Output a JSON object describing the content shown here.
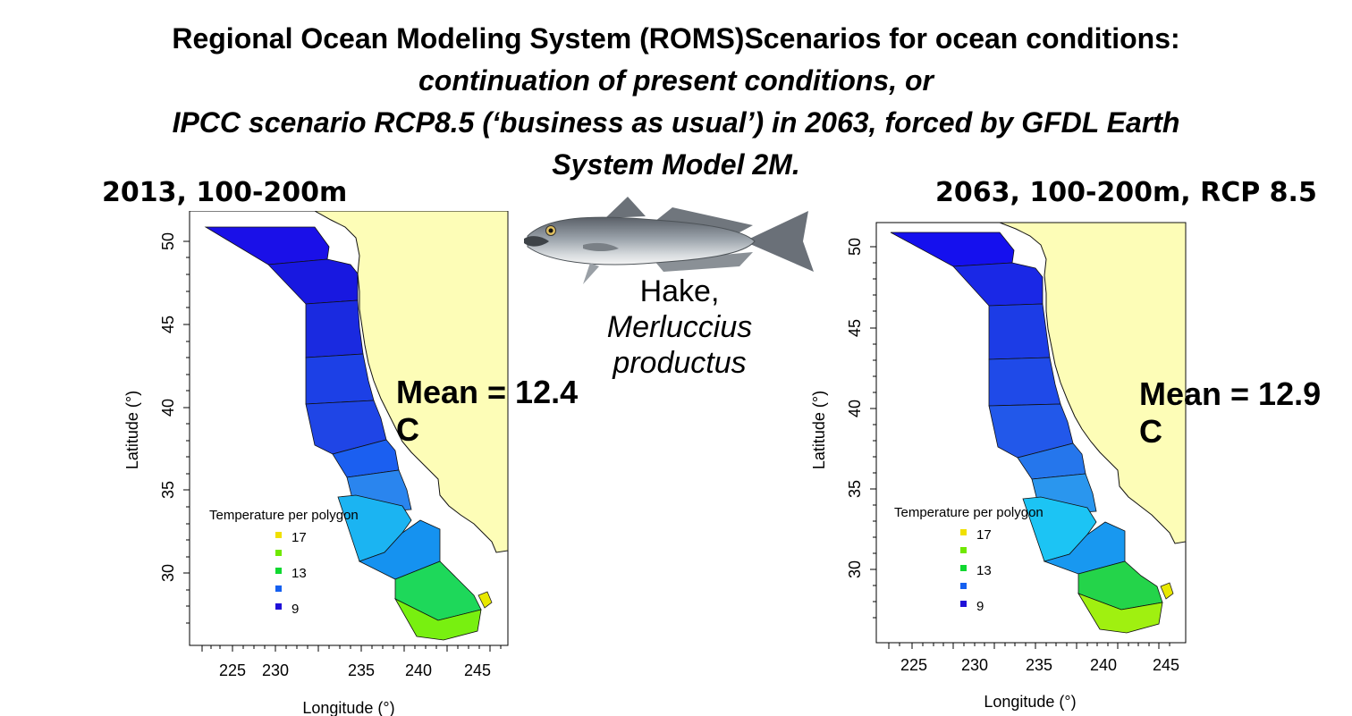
{
  "title": {
    "line1": "Regional Ocean Modeling System (ROMS)Scenarios for ocean conditions:",
    "line2": "continuation of present conditions, or",
    "line3": "IPCC scenario RCP8.5 (‘business as usual’) in 2063, forced by GFDL Earth",
    "line4": "System Model 2M."
  },
  "fish": {
    "common_name": "Hake,",
    "sci_line1": "Merluccius",
    "sci_line2": "productus",
    "icon": "hake-fish-illustration"
  },
  "panels": [
    {
      "heading": "2013, 100-200m",
      "mean_line1": "Mean = 12.4",
      "mean_line2": "C",
      "x_ticks": [
        "225",
        "230",
        "235",
        "240",
        "245"
      ],
      "y_ticks": [
        "50",
        "45",
        "40",
        "35",
        "30"
      ],
      "x_label": "Longitude (°)",
      "y_label": "Latitude (°)",
      "legend_title": "Temperature per polygon",
      "legend": [
        {
          "label": "17",
          "color": "#f0e000"
        },
        {
          "label": "",
          "color": "#70e800"
        },
        {
          "label": "13",
          "color": "#10d830"
        },
        {
          "label": "",
          "color": "#1560f0"
        },
        {
          "label": "9",
          "color": "#2010d8"
        }
      ],
      "polygon_colors": [
        "#1a10e8",
        "#1818e0",
        "#1a2ae0",
        "#1c40e6",
        "#1f45e6",
        "#1b5ff0",
        "#2a85ee",
        "#1bb4f2",
        "#1592f0",
        "#1ed85a",
        "#78f010"
      ]
    },
    {
      "heading": "2063, 100-200m, RCP 8.5",
      "mean_line1": "Mean = 12.9",
      "mean_line2": "C",
      "x_ticks": [
        "225",
        "230",
        "235",
        "240",
        "245"
      ],
      "y_ticks": [
        "50",
        "45",
        "40",
        "35",
        "30"
      ],
      "x_label": "Longitude (°)",
      "y_label": "Latitude (°)",
      "legend_title": "Temperature per polygon",
      "legend": [
        {
          "label": "17",
          "color": "#f0e000"
        },
        {
          "label": "",
          "color": "#70e800"
        },
        {
          "label": "13",
          "color": "#10d830"
        },
        {
          "label": "",
          "color": "#1560f0"
        },
        {
          "label": "9",
          "color": "#2010d8"
        }
      ],
      "polygon_colors": [
        "#1510ee",
        "#1a28e6",
        "#1c3ce6",
        "#1f4ae8",
        "#2258ea",
        "#2576ec",
        "#2a96ee",
        "#1cc4f4",
        "#1898f0",
        "#24d44a",
        "#a0f010"
      ]
    }
  ]
}
